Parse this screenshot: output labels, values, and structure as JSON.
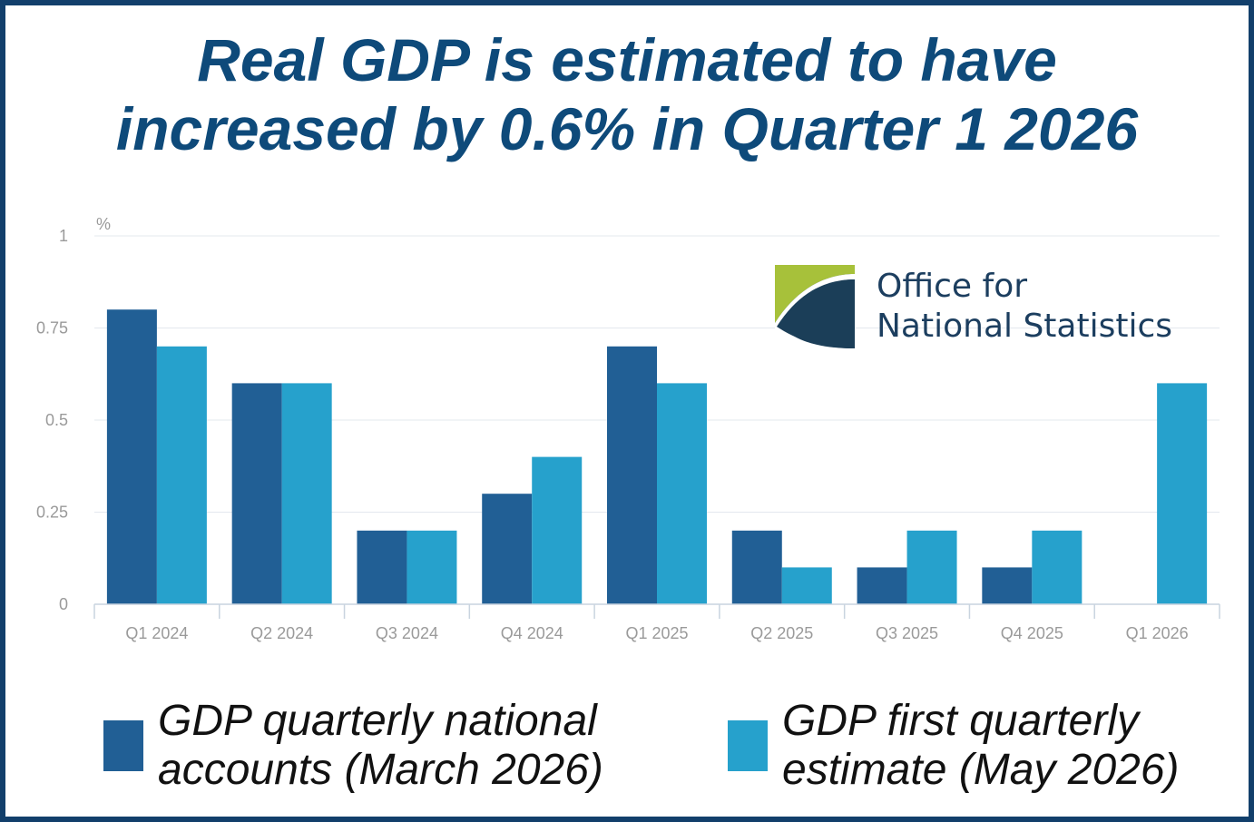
{
  "title": {
    "line1": "Real GDP is estimated to have",
    "line2": "increased by 0.6% in Quarter 1 2026"
  },
  "logo": {
    "line1": "Office for",
    "line2": "National Statistics"
  },
  "colors": {
    "border": "#123f6b",
    "title": "#0e4a7a",
    "series1": "#215f95",
    "series2": "#26a1cc"
  },
  "chart_data": {
    "type": "bar",
    "unit_label": "%",
    "categories": [
      "Q1 2024",
      "Q2 2024",
      "Q3 2024",
      "Q4 2024",
      "Q1 2025",
      "Q2 2025",
      "Q3 2025",
      "Q4 2025",
      "Q1 2026"
    ],
    "series": [
      {
        "name": "GDP quarterly national accounts (March 2026)",
        "values": [
          0.8,
          0.6,
          0.2,
          0.3,
          0.7,
          0.2,
          0.1,
          0.1,
          null
        ]
      },
      {
        "name": "GDP first quarterly estimate (May 2026)",
        "values": [
          0.7,
          0.6,
          0.2,
          0.4,
          0.6,
          0.1,
          0.2,
          0.2,
          0.6
        ]
      }
    ],
    "ylim": [
      0,
      1
    ],
    "yticks": [
      "0",
      "0.25",
      "0.5",
      "0.75",
      "1"
    ],
    "ytick_values": [
      0,
      0.25,
      0.5,
      0.75,
      1
    ],
    "grid": true,
    "legend_position": "bottom"
  },
  "legend": {
    "item1_line1": "GDP quarterly national",
    "item1_line2": "accounts (March 2026)",
    "item2_line1": "GDP first quarterly",
    "item2_line2": "estimate (May 2026)"
  }
}
